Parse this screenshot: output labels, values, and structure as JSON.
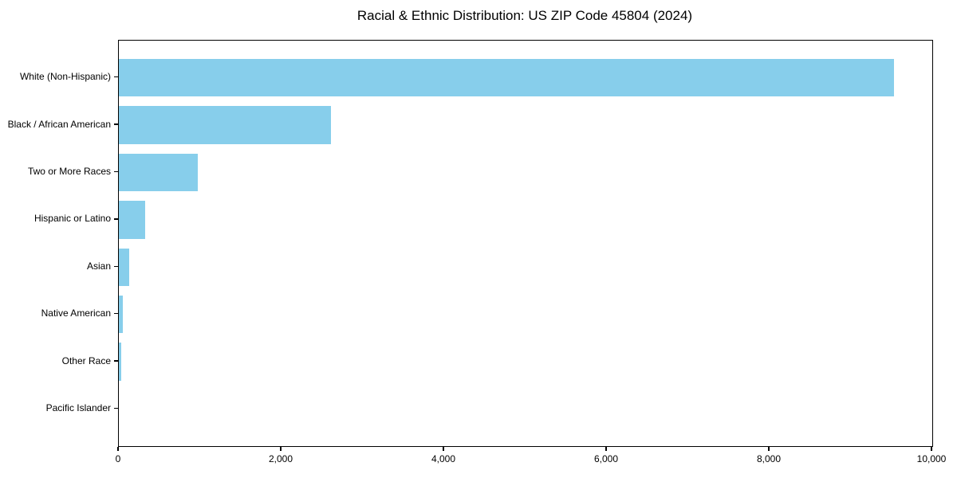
{
  "title": "Racial & Ethnic Distribution: US ZIP Code 45804 (2024)",
  "colors": {
    "bar": "#87CEEB",
    "spine": "#000000",
    "background": "#FFFFFF",
    "text": "#000000"
  },
  "chart_data": {
    "type": "bar",
    "orientation": "horizontal",
    "title": "Racial & Ethnic Distribution: US ZIP Code 45804 (2024)",
    "categories": [
      "White (Non-Hispanic)",
      "Black / African American",
      "Two or More Races",
      "Hispanic or Latino",
      "Asian",
      "Native American",
      "Other Race",
      "Pacific Islander"
    ],
    "values": [
      9530,
      2610,
      970,
      320,
      125,
      50,
      30,
      0
    ],
    "xlabel": "",
    "ylabel": "",
    "xlim": [
      0,
      10000
    ],
    "x_ticks": [
      0,
      2000,
      4000,
      6000,
      8000,
      10000
    ],
    "x_tick_labels": [
      "0",
      "2,000",
      "4,000",
      "6,000",
      "8,000",
      "10,000"
    ],
    "bar_color": "#87CEEB",
    "grid": false,
    "legend": "none",
    "spines": "all-four-black"
  }
}
